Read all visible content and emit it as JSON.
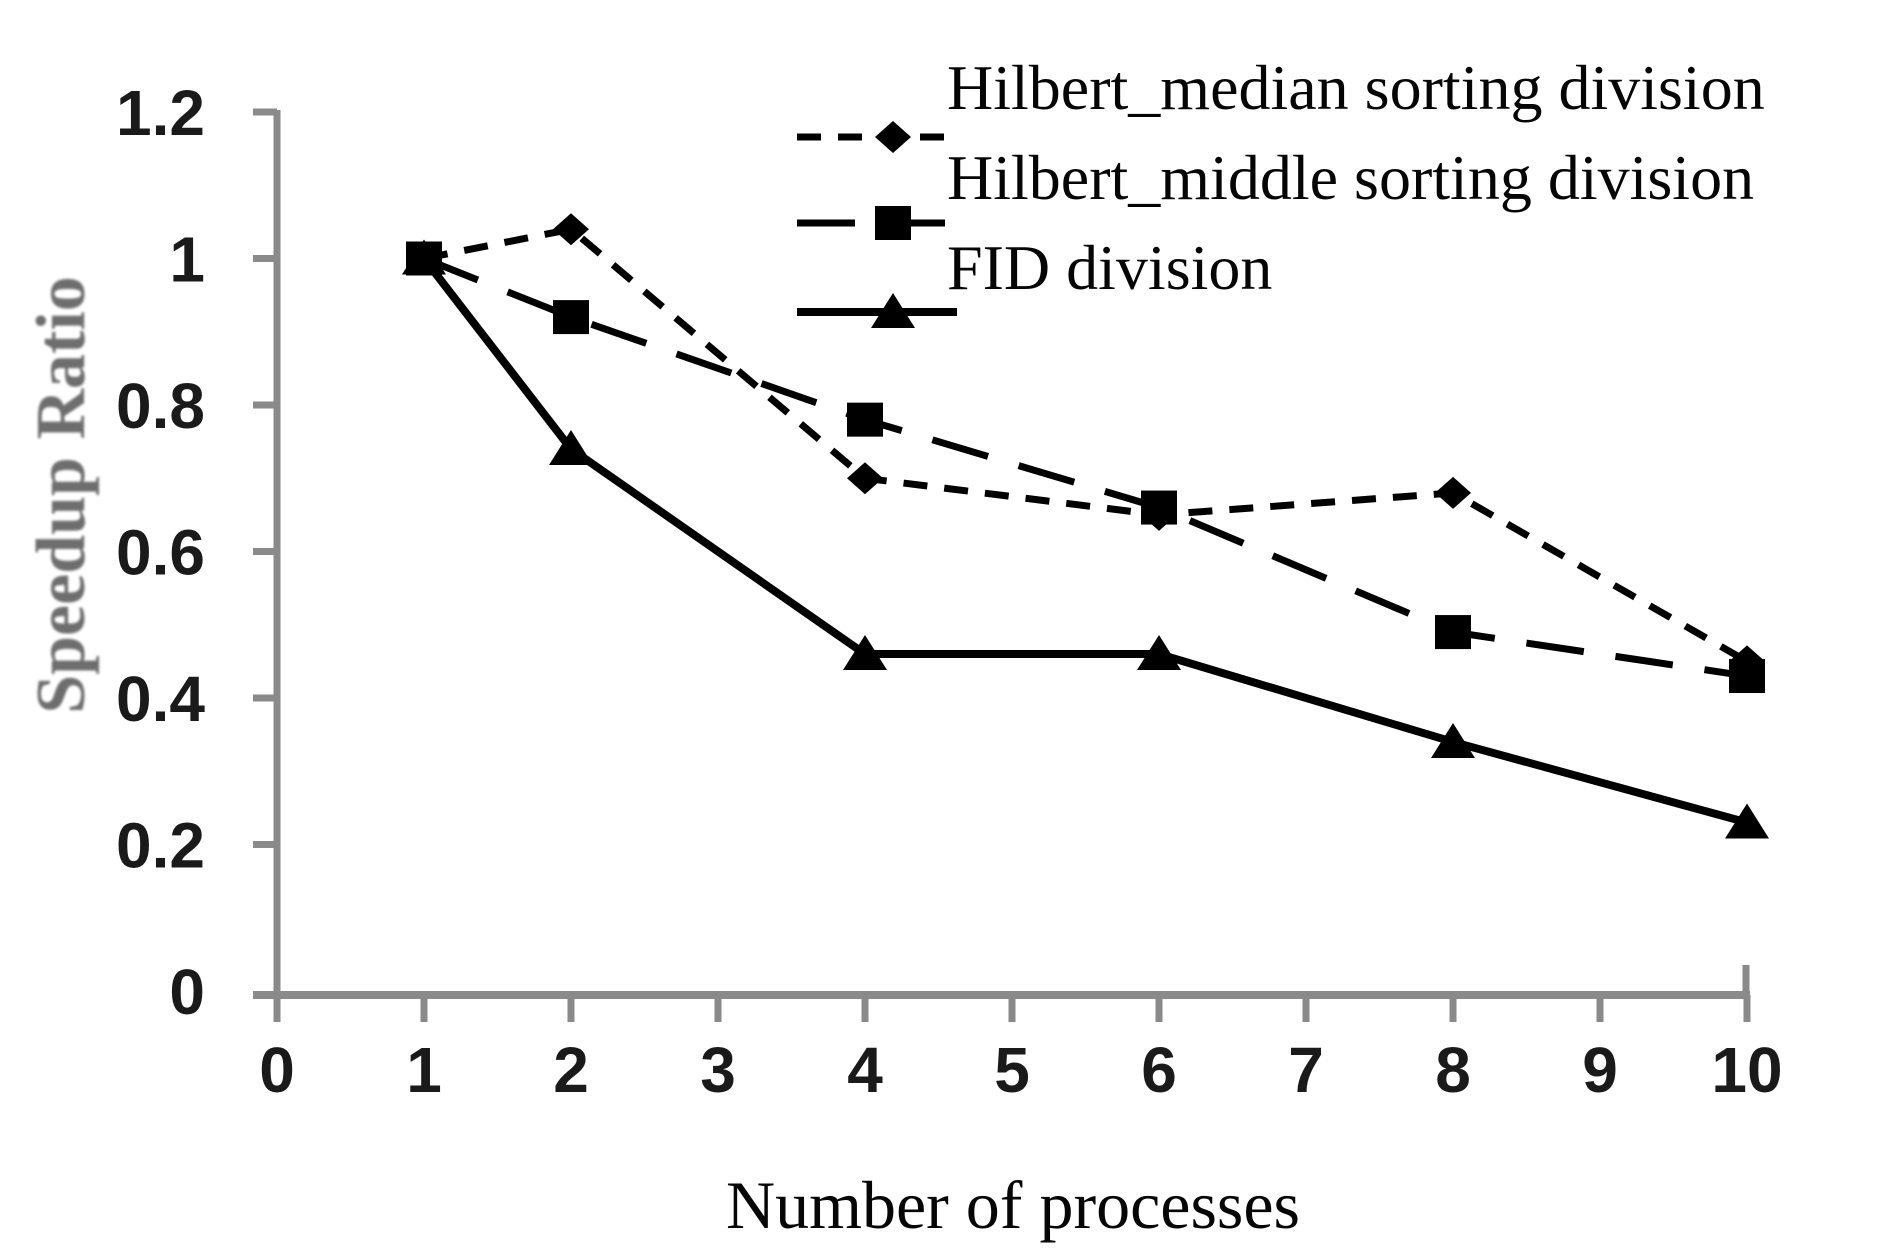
{
  "chart_data": {
    "type": "line",
    "title": "",
    "xlabel": "Number of processes",
    "ylabel": "Speedup Ratio",
    "x": [
      1,
      2,
      4,
      6,
      8,
      10
    ],
    "series": [
      {
        "name": "Hilbert_median sorting division",
        "marker": "diamond",
        "line_style": "short-dash",
        "values": [
          1.0,
          1.04,
          0.7,
          0.65,
          0.68,
          0.45
        ]
      },
      {
        "name": "Hilbert_middle sorting division",
        "marker": "square",
        "line_style": "long-dash",
        "values": [
          1.0,
          0.92,
          0.78,
          0.66,
          0.49,
          0.43
        ]
      },
      {
        "name": "FID division",
        "marker": "triangle",
        "line_style": "solid",
        "values": [
          1.0,
          0.74,
          0.46,
          0.46,
          0.34,
          0.23
        ]
      }
    ],
    "xticks": [
      0,
      1,
      2,
      3,
      4,
      5,
      6,
      7,
      8,
      9,
      10
    ],
    "xtick_labels": [
      "0",
      "1",
      "2",
      "3",
      "4",
      "5",
      "6",
      "7",
      "8",
      "9",
      "10"
    ],
    "yticks": [
      0,
      0.2,
      0.4,
      0.6,
      0.8,
      1.0,
      1.2
    ],
    "ytick_labels": [
      "0",
      "0.2",
      "0.4",
      "0.6",
      "0.8",
      "1",
      "1.2"
    ],
    "xlim": [
      0,
      10
    ],
    "ylim": [
      0,
      1.2
    ],
    "grid": false,
    "legend_position": "top-right",
    "colors": {
      "series": "#000000",
      "axis": "#8a8a8a",
      "tick_label": "#1a1a1a",
      "y_axis_title": "#6e6e6e"
    }
  }
}
